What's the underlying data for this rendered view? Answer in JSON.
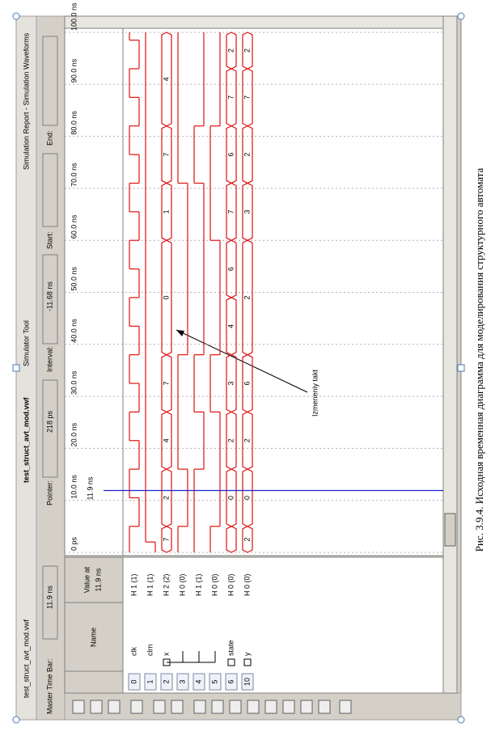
{
  "tabs": [
    "test_struct_avt_mod.vwf",
    "test_struct_avt_mod.vwf",
    "Simulator Tool",
    "Simulation Report - Simulation Waveforms"
  ],
  "timebar": {
    "master_label": "Master Time Bar:",
    "master_value": "11.9 ns",
    "pointer_label": "Pointer:",
    "pointer_value": "218 ps",
    "interval_label": "Interval:",
    "interval_value": "-11.68 ns",
    "start_label": "Start:",
    "end_label": "End:"
  },
  "header": {
    "name": "Name",
    "value_at": "Value at",
    "value_time": "11.9 ns"
  },
  "axis": {
    "xlim": [
      0,
      100
    ],
    "ticks": [
      {
        "value": 0,
        "label": "0 ps"
      },
      {
        "value": 10,
        "label": "10.0 ns"
      },
      {
        "value": 20,
        "label": "20.0 ns"
      },
      {
        "value": 30,
        "label": "30.0 ns"
      },
      {
        "value": 40,
        "label": "40.0 ns"
      },
      {
        "value": 50,
        "label": "50.0 ns"
      },
      {
        "value": 60,
        "label": "60.0 ns"
      },
      {
        "value": 70,
        "label": "70.0 ns"
      },
      {
        "value": 80,
        "label": "80.0 ns"
      },
      {
        "value": 90,
        "label": "90.0 ns"
      },
      {
        "value": 100,
        "label": "100.0 ns"
      }
    ]
  },
  "cursor": {
    "time": 11.9,
    "label": "11.9 ns"
  },
  "signals": [
    {
      "index": "0",
      "name": "clk",
      "value": "H 1 (1)",
      "kind": "bit",
      "t": [
        0,
        5,
        10.5,
        16,
        21.5,
        27,
        32.5,
        38,
        43.5,
        49,
        54.5,
        60,
        65.5,
        71,
        76.5,
        82,
        87.5,
        93,
        98.5
      ],
      "v": [
        1,
        0,
        1,
        0,
        1,
        0,
        1,
        0,
        1,
        0,
        1,
        0,
        1,
        0,
        1,
        0,
        1,
        0,
        1
      ]
    },
    {
      "index": "1",
      "name": "clrn",
      "value": "H 1 (1)",
      "kind": "bit",
      "t": [
        0,
        2
      ],
      "v": [
        0,
        1
      ]
    },
    {
      "index": "2",
      "name": "x",
      "value": "H 2 (2)",
      "kind": "bus",
      "starts": [
        0,
        5,
        16,
        27,
        38,
        60,
        71,
        82
      ],
      "labels": [
        7,
        2,
        4,
        7,
        0,
        1,
        7,
        4
      ]
    },
    {
      "index": "3",
      "name": null,
      "value": "H 0 (0)",
      "kind": "bit",
      "t": [
        0,
        5,
        16,
        38,
        71
      ],
      "v": [
        1,
        0,
        1,
        0,
        1
      ]
    },
    {
      "index": "4",
      "name": null,
      "value": "H 1 (1)",
      "kind": "bit",
      "t": [
        0,
        16,
        27,
        38,
        71,
        82
      ],
      "v": [
        1,
        0,
        1,
        0,
        1,
        0
      ]
    },
    {
      "index": "5",
      "name": null,
      "value": "H 0 (0)",
      "kind": "bit",
      "t": [
        0,
        5,
        27,
        38,
        60,
        82
      ],
      "v": [
        1,
        0,
        1,
        0,
        1,
        0
      ]
    },
    {
      "index": "6",
      "name": "state",
      "value": "H 0 (0)",
      "kind": "bus",
      "starts": [
        0,
        5,
        16,
        27,
        38,
        49,
        60,
        71,
        82,
        93
      ],
      "labels": [
        null,
        0,
        2,
        3,
        4,
        6,
        7,
        6,
        7,
        2
      ]
    },
    {
      "index": "10",
      "name": "y",
      "value": "H 0 (0)",
      "kind": "bus",
      "starts": [
        0,
        5,
        16,
        27,
        38,
        60,
        71,
        82,
        93
      ],
      "labels": [
        2,
        0,
        2,
        6,
        2,
        3,
        2,
        7,
        2
      ]
    }
  ],
  "annotation": "Izmeneniy takt",
  "caption": "Рис. 3.9.4. Исходная временная диаграмма для моделирования структурного автомата"
}
